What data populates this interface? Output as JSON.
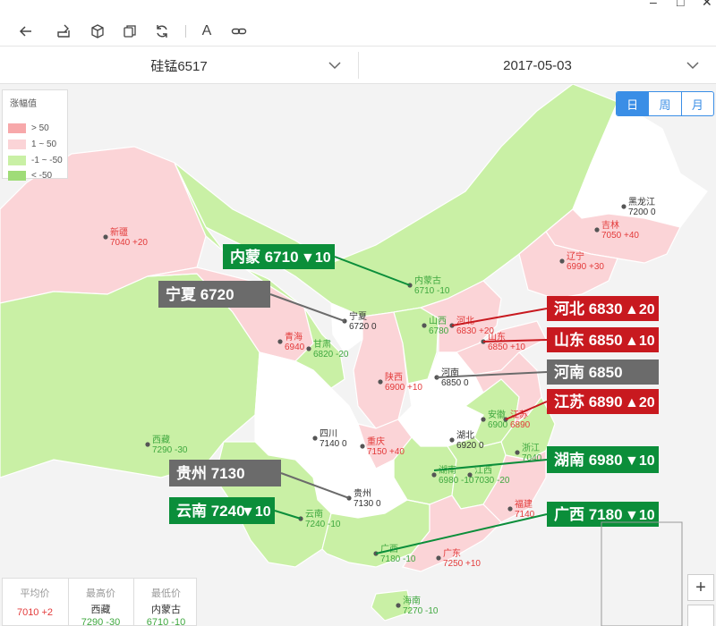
{
  "window": {
    "minimize": "–",
    "maximize": "□",
    "close": "✕"
  },
  "toolbar": {
    "icons": [
      "back-arrow-icon",
      "share-icon",
      "cube-icon",
      "copy-icon",
      "refresh-icon",
      "font-icon",
      "link-icon"
    ],
    "font_glyph": "A"
  },
  "selectors": {
    "product": "硅锰6517",
    "date": "2017-05-03"
  },
  "period_tabs": {
    "day": "日",
    "week": "周",
    "month": "月",
    "active": "day"
  },
  "legend": {
    "title": "涨幅值",
    "items": [
      {
        "label": "> 50",
        "color": "#f7a8aa"
      },
      {
        "label": "1 ~ 50",
        "color": "#fbd4d7"
      },
      {
        "label": "-1 ~ -50",
        "color": "#c9f0a5"
      },
      {
        "label": "< -50",
        "color": "#9fdc78"
      }
    ]
  },
  "colors": {
    "up_text": "#e33b3b",
    "down_text": "#3fa83f",
    "flat_text": "#333333",
    "callout_up": "#c8191f",
    "callout_down": "#0b8e3a",
    "callout_flat": "#6b6b6b",
    "rise_fill": "#fbd4d7",
    "fall_fill": "#c9f0a5",
    "flat_fill": "#ffffff",
    "ocean": "#f3f3f3"
  },
  "provinces": [
    {
      "name": "新疆",
      "price": "7040",
      "change": "+20",
      "trend": "up"
    },
    {
      "name": "西藏",
      "price": "7290",
      "change": "-30",
      "trend": "down"
    },
    {
      "name": "青海",
      "price": "6940",
      "change": "",
      "trend": "up"
    },
    {
      "name": "甘肃",
      "price": "6820",
      "change": "-20",
      "trend": "down"
    },
    {
      "name": "宁夏",
      "price": "6720",
      "change": "0",
      "trend": "flat"
    },
    {
      "name": "内蒙古",
      "price": "6710",
      "change": "-10",
      "trend": "down"
    },
    {
      "name": "陕西",
      "price": "6900",
      "change": "+10",
      "trend": "up"
    },
    {
      "name": "山西",
      "price": "6780",
      "change": "",
      "trend": "down"
    },
    {
      "name": "河北",
      "price": "6830",
      "change": "+20",
      "trend": "up"
    },
    {
      "name": "山东",
      "price": "6850",
      "change": "+10",
      "trend": "up"
    },
    {
      "name": "河南",
      "price": "6850",
      "change": "0",
      "trend": "flat"
    },
    {
      "name": "黑龙江",
      "price": "7200",
      "change": "0",
      "trend": "flat"
    },
    {
      "name": "吉林",
      "price": "7050",
      "change": "+40",
      "trend": "up"
    },
    {
      "name": "辽宁",
      "price": "6990",
      "change": "+30",
      "trend": "up"
    },
    {
      "name": "四川",
      "price": "7140",
      "change": "0",
      "trend": "flat"
    },
    {
      "name": "重庆",
      "price": "7150",
      "change": "+40",
      "trend": "up"
    },
    {
      "name": "湖北",
      "price": "6920",
      "change": "0",
      "trend": "flat"
    },
    {
      "name": "安徽",
      "price": "6900",
      "change": "",
      "trend": "down"
    },
    {
      "name": "江苏",
      "price": "6890",
      "change": "",
      "trend": "up"
    },
    {
      "name": "浙江",
      "price": "7040",
      "change": "",
      "trend": "down"
    },
    {
      "name": "湖南",
      "price": "6980",
      "change": "-10",
      "trend": "down"
    },
    {
      "name": "江西",
      "price": "7030",
      "change": "-20",
      "trend": "down"
    },
    {
      "name": "贵州",
      "price": "7130",
      "change": "0",
      "trend": "flat"
    },
    {
      "name": "云南",
      "price": "7240",
      "change": "-10",
      "trend": "down"
    },
    {
      "name": "福建",
      "price": "7140",
      "change": "",
      "trend": "up"
    },
    {
      "name": "广西",
      "price": "7180",
      "change": "-10",
      "trend": "down"
    },
    {
      "name": "广东",
      "price": "7250",
      "change": "+10",
      "trend": "up"
    },
    {
      "name": "海南",
      "price": "7270",
      "change": "-10",
      "trend": "down"
    }
  ],
  "callouts": [
    {
      "province": "内蒙",
      "price": "6710",
      "change": "▼10",
      "trend": "down"
    },
    {
      "province": "宁夏",
      "price": "6720",
      "change": "",
      "trend": "flat"
    },
    {
      "province": "河北",
      "price": "6830",
      "change": "▲20",
      "trend": "up"
    },
    {
      "province": "山东",
      "price": "6850",
      "change": "▲10",
      "trend": "up"
    },
    {
      "province": "河南",
      "price": "6850",
      "change": "",
      "trend": "flat"
    },
    {
      "province": "江苏",
      "price": "6890",
      "change": "▲20",
      "trend": "up"
    },
    {
      "province": "湖南",
      "price": "6980",
      "change": "▼10",
      "trend": "down"
    },
    {
      "province": "贵州",
      "price": "7130",
      "change": "",
      "trend": "flat"
    },
    {
      "province": "云南",
      "price": "7240",
      "change": "▼10",
      "trend": "down"
    },
    {
      "province": "广西",
      "price": "7180",
      "change": "▼10",
      "trend": "down"
    }
  ],
  "stats": {
    "avg": {
      "label": "平均价",
      "value": "7010 +2"
    },
    "max": {
      "label": "最高价",
      "province": "西藏",
      "value": "7290 -30"
    },
    "min": {
      "label": "最低价",
      "province": "内蒙古",
      "value": "6710 -10"
    }
  },
  "zoom_in_label": "+"
}
